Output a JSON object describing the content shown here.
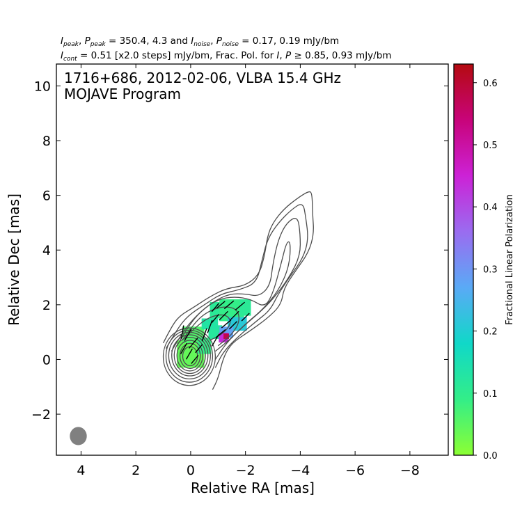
{
  "chart_data": {
    "type": "contour",
    "header": {
      "line1": {
        "i_peak": "I",
        "i_peak_sub": "peak",
        "p_peak": "P",
        "p_peak_sub": "peak",
        "peak_values": " = 350.4, 4.3 and ",
        "i_noise": "I",
        "i_noise_sub": "noise",
        "p_noise": "P",
        "p_noise_sub": "noise",
        "noise_values": " = 0.17, 0.19 mJy/bm"
      },
      "line2": {
        "i_cont": "I",
        "i_cont_sub": "cont",
        "cont_values": " = 0.51 [x2.0 steps] mJy/bm, Frac. Pol. for ",
        "i_sym": "I",
        "p_sym": "P",
        "geq": " ≥ ",
        "frac_values": "0.85, 0.93 mJy/bm"
      }
    },
    "title_line1": "1716+686, 2012-02-06, VLBA 15.4 GHz",
    "title_line2": "MOJAVE Program",
    "xlabel": "Relative RA [mas]",
    "ylabel": "Relative Dec [mas]",
    "xlim": [
      4.9,
      -9.4
    ],
    "ylim": [
      -3.5,
      10.8
    ],
    "xticks": [
      4,
      2,
      0,
      -2,
      -4,
      -6,
      -8
    ],
    "xtick_labels": [
      "4",
      "2",
      "0",
      "−2",
      "−4",
      "−6",
      "−8"
    ],
    "yticks": [
      -2,
      0,
      2,
      4,
      6,
      8,
      10
    ],
    "ytick_labels": [
      "−2",
      "0",
      "2",
      "4",
      "6",
      "8",
      "10"
    ],
    "contour_color": "#4d4d4d",
    "beam": {
      "x": 4.1,
      "y": -2.8,
      "bmaj": 0.7,
      "bmin": 0.62,
      "color": "#808080"
    },
    "core_contours": [
      {
        "cx": 0.05,
        "cy": 0.1,
        "rx": 0.95,
        "ry": 1.05
      },
      {
        "cx": 0.05,
        "cy": 0.12,
        "rx": 0.85,
        "ry": 0.95
      },
      {
        "cx": 0.04,
        "cy": 0.14,
        "rx": 0.76,
        "ry": 0.85
      },
      {
        "cx": 0.03,
        "cy": 0.15,
        "rx": 0.66,
        "ry": 0.75
      },
      {
        "cx": 0.03,
        "cy": 0.15,
        "rx": 0.57,
        "ry": 0.66
      },
      {
        "cx": 0.03,
        "cy": 0.14,
        "rx": 0.47,
        "ry": 0.56
      },
      {
        "cx": 0.02,
        "cy": 0.13,
        "rx": 0.37,
        "ry": 0.46
      },
      {
        "cx": 0.02,
        "cy": 0.12,
        "rx": 0.27,
        "ry": 0.35
      }
    ],
    "jet_contours": [
      [
        [
          1.0,
          0.6
        ],
        [
          0.7,
          1.2
        ],
        [
          0.4,
          1.6
        ],
        [
          -0.1,
          1.9
        ],
        [
          -0.7,
          2.3
        ],
        [
          -1.3,
          2.6
        ],
        [
          -2.0,
          2.7
        ],
        [
          -2.5,
          3.1
        ],
        [
          -2.7,
          3.8
        ],
        [
          -2.8,
          4.5
        ],
        [
          -3.0,
          5.0
        ],
        [
          -3.4,
          5.5
        ],
        [
          -3.9,
          5.9
        ],
        [
          -4.3,
          6.15
        ],
        [
          -4.43,
          6.1
        ],
        [
          -4.45,
          5.3
        ],
        [
          -4.5,
          4.6
        ],
        [
          -4.3,
          3.9
        ],
        [
          -3.8,
          3.2
        ],
        [
          -3.4,
          2.6
        ],
        [
          -3.3,
          2.0
        ],
        [
          -2.8,
          1.5
        ],
        [
          -2.1,
          1.0
        ],
        [
          -1.5,
          0.6
        ],
        [
          -1.2,
          0.1
        ],
        [
          -1.0,
          -0.7
        ],
        [
          -0.8,
          -1.1
        ]
      ],
      [
        [
          0.9,
          0.4
        ],
        [
          0.5,
          1.1
        ],
        [
          0.1,
          1.6
        ],
        [
          -0.5,
          2.0
        ],
        [
          -1.1,
          2.4
        ],
        [
          -1.8,
          2.55
        ],
        [
          -2.4,
          2.8
        ],
        [
          -2.6,
          3.6
        ],
        [
          -2.8,
          4.4
        ],
        [
          -3.2,
          5.0
        ],
        [
          -3.7,
          5.5
        ],
        [
          -4.1,
          5.75
        ],
        [
          -4.2,
          5.2
        ],
        [
          -4.3,
          4.4
        ],
        [
          -4.1,
          3.7
        ],
        [
          -3.6,
          3.0
        ],
        [
          -3.2,
          2.4
        ],
        [
          -2.9,
          1.8
        ],
        [
          -2.4,
          1.4
        ],
        [
          -1.8,
          0.9
        ],
        [
          -1.2,
          0.3
        ],
        [
          -0.9,
          -0.3
        ]
      ],
      [
        [
          0.7,
          0.3
        ],
        [
          0.3,
          1.0
        ],
        [
          -0.2,
          1.6
        ],
        [
          -0.8,
          2.1
        ],
        [
          -1.4,
          2.4
        ],
        [
          -2.0,
          2.4
        ],
        [
          -2.5,
          2.3
        ],
        [
          -2.9,
          2.7
        ],
        [
          -3.0,
          3.5
        ],
        [
          -3.2,
          4.4
        ],
        [
          -3.5,
          5.0
        ],
        [
          -3.9,
          5.25
        ],
        [
          -4.0,
          4.6
        ],
        [
          -4.0,
          3.8
        ],
        [
          -3.6,
          3.0
        ],
        [
          -3.0,
          2.2
        ],
        [
          -2.5,
          1.7
        ],
        [
          -1.9,
          1.2
        ],
        [
          -1.3,
          0.6
        ],
        [
          -0.9,
          0.0
        ]
      ],
      [
        [
          0.5,
          0.5
        ],
        [
          0.1,
          1.2
        ],
        [
          -0.4,
          1.8
        ],
        [
          -1.0,
          2.2
        ],
        [
          -1.6,
          2.3
        ],
        [
          -2.2,
          2.2
        ],
        [
          -2.7,
          1.9
        ],
        [
          -3.0,
          2.4
        ],
        [
          -3.3,
          3.5
        ],
        [
          -3.5,
          4.3
        ],
        [
          -3.65,
          4.3
        ],
        [
          -3.6,
          3.4
        ],
        [
          -3.2,
          2.5
        ],
        [
          -2.6,
          1.8
        ],
        [
          -2.0,
          1.3
        ],
        [
          -1.4,
          0.7
        ],
        [
          -0.9,
          0.3
        ]
      ],
      [
        [
          0.3,
          0.7
        ],
        [
          -0.1,
          1.3
        ],
        [
          -0.6,
          1.75
        ],
        [
          -1.2,
          1.95
        ],
        [
          -1.7,
          1.85
        ],
        [
          -1.8,
          1.4
        ],
        [
          -1.5,
          0.9
        ],
        [
          -1.0,
          0.5
        ]
      ],
      [
        [
          0.2,
          0.8
        ],
        [
          -0.3,
          1.3
        ],
        [
          -0.8,
          1.6
        ],
        [
          -1.3,
          1.65
        ],
        [
          -1.5,
          1.35
        ],
        [
          -1.2,
          0.95
        ],
        [
          -0.7,
          0.7
        ]
      ]
    ],
    "pol_pixels": [
      {
        "x": 0.0,
        "y": 0.2,
        "w": 1.0,
        "h": 1.0,
        "frac": 0.04
      },
      {
        "x": -0.1,
        "y": 0.9,
        "w": 0.8,
        "h": 0.6,
        "frac": 0.06
      },
      {
        "x": -0.5,
        "y": 0.5,
        "w": 0.5,
        "h": 0.6,
        "frac": 0.09
      },
      {
        "x": -0.9,
        "y": 1.0,
        "w": 0.5,
        "h": 0.5,
        "frac": 0.12
      },
      {
        "x": -0.7,
        "y": 1.3,
        "w": 0.6,
        "h": 0.4,
        "frac": 0.13
      },
      {
        "x": -1.0,
        "y": 1.8,
        "w": 0.6,
        "h": 0.6,
        "frac": 0.11
      },
      {
        "x": -1.5,
        "y": 1.8,
        "w": 0.9,
        "h": 0.8,
        "frac": 0.09
      },
      {
        "x": -2.0,
        "y": 1.9,
        "w": 0.4,
        "h": 0.6,
        "frac": 0.11
      },
      {
        "x": -1.7,
        "y": 1.3,
        "w": 0.7,
        "h": 0.5,
        "frac": 0.21
      },
      {
        "x": -1.3,
        "y": 1.0,
        "w": 0.5,
        "h": 0.4,
        "frac": 0.28
      },
      {
        "x": -1.2,
        "y": 0.8,
        "w": 0.35,
        "h": 0.35,
        "frac": 0.44
      },
      {
        "x": -1.3,
        "y": 0.85,
        "w": 0.2,
        "h": 0.2,
        "frac": 0.58
      }
    ],
    "evpa_ticks": [
      {
        "x": 0.3,
        "y": 1.0,
        "len": 0.5,
        "angle": 80
      },
      {
        "x": 0.1,
        "y": 0.9,
        "len": 0.5,
        "angle": 60
      },
      {
        "x": -0.1,
        "y": 0.6,
        "len": 0.5,
        "angle": 50
      },
      {
        "x": 0.25,
        "y": 0.4,
        "len": 0.45,
        "angle": 60
      },
      {
        "x": 0.05,
        "y": 0.2,
        "len": 0.45,
        "angle": 60
      },
      {
        "x": -0.15,
        "y": 0.0,
        "len": 0.4,
        "angle": 50
      },
      {
        "x": -0.3,
        "y": 0.4,
        "len": 0.4,
        "angle": 50
      },
      {
        "x": -0.5,
        "y": 0.9,
        "len": 0.5,
        "angle": 70
      },
      {
        "x": -0.7,
        "y": 1.2,
        "len": 0.5,
        "angle": 70
      },
      {
        "x": -0.9,
        "y": 0.7,
        "len": 0.5,
        "angle": 60
      },
      {
        "x": -1.1,
        "y": 0.95,
        "len": 0.45,
        "angle": 40
      },
      {
        "x": -1.3,
        "y": 1.3,
        "len": 0.45,
        "angle": 40
      },
      {
        "x": -0.9,
        "y": 1.5,
        "len": 0.4,
        "angle": 50
      },
      {
        "x": -0.9,
        "y": 1.9,
        "len": 0.4,
        "angle": 50
      },
      {
        "x": -1.2,
        "y": 1.6,
        "len": 0.45,
        "angle": 45
      },
      {
        "x": -1.4,
        "y": 2.0,
        "len": 0.45,
        "angle": 40
      },
      {
        "x": -1.6,
        "y": 1.6,
        "len": 0.45,
        "angle": 45
      },
      {
        "x": -1.8,
        "y": 1.95,
        "len": 0.45,
        "angle": 40
      },
      {
        "x": -2.0,
        "y": 1.55,
        "len": 0.4,
        "angle": 45
      },
      {
        "x": -1.1,
        "y": 2.0,
        "len": 0.4,
        "angle": 40
      },
      {
        "x": -1.55,
        "y": 1.25,
        "len": 0.4,
        "angle": 45
      }
    ],
    "colorbar": {
      "label": "Fractional Linear Polarization",
      "min": 0.0,
      "max": 0.63,
      "ticks": [
        0.0,
        0.1,
        0.2,
        0.3,
        0.4,
        0.5,
        0.6
      ],
      "tick_labels": [
        "0.0",
        "0.1",
        "0.2",
        "0.3",
        "0.4",
        "0.5",
        "0.6"
      ],
      "colors": [
        "#8cff33",
        "#33ee88",
        "#10d8c8",
        "#5aaaf6",
        "#9a6cf0",
        "#cc22d6",
        "#c8047a",
        "#b40a10"
      ]
    },
    "grid": false
  }
}
